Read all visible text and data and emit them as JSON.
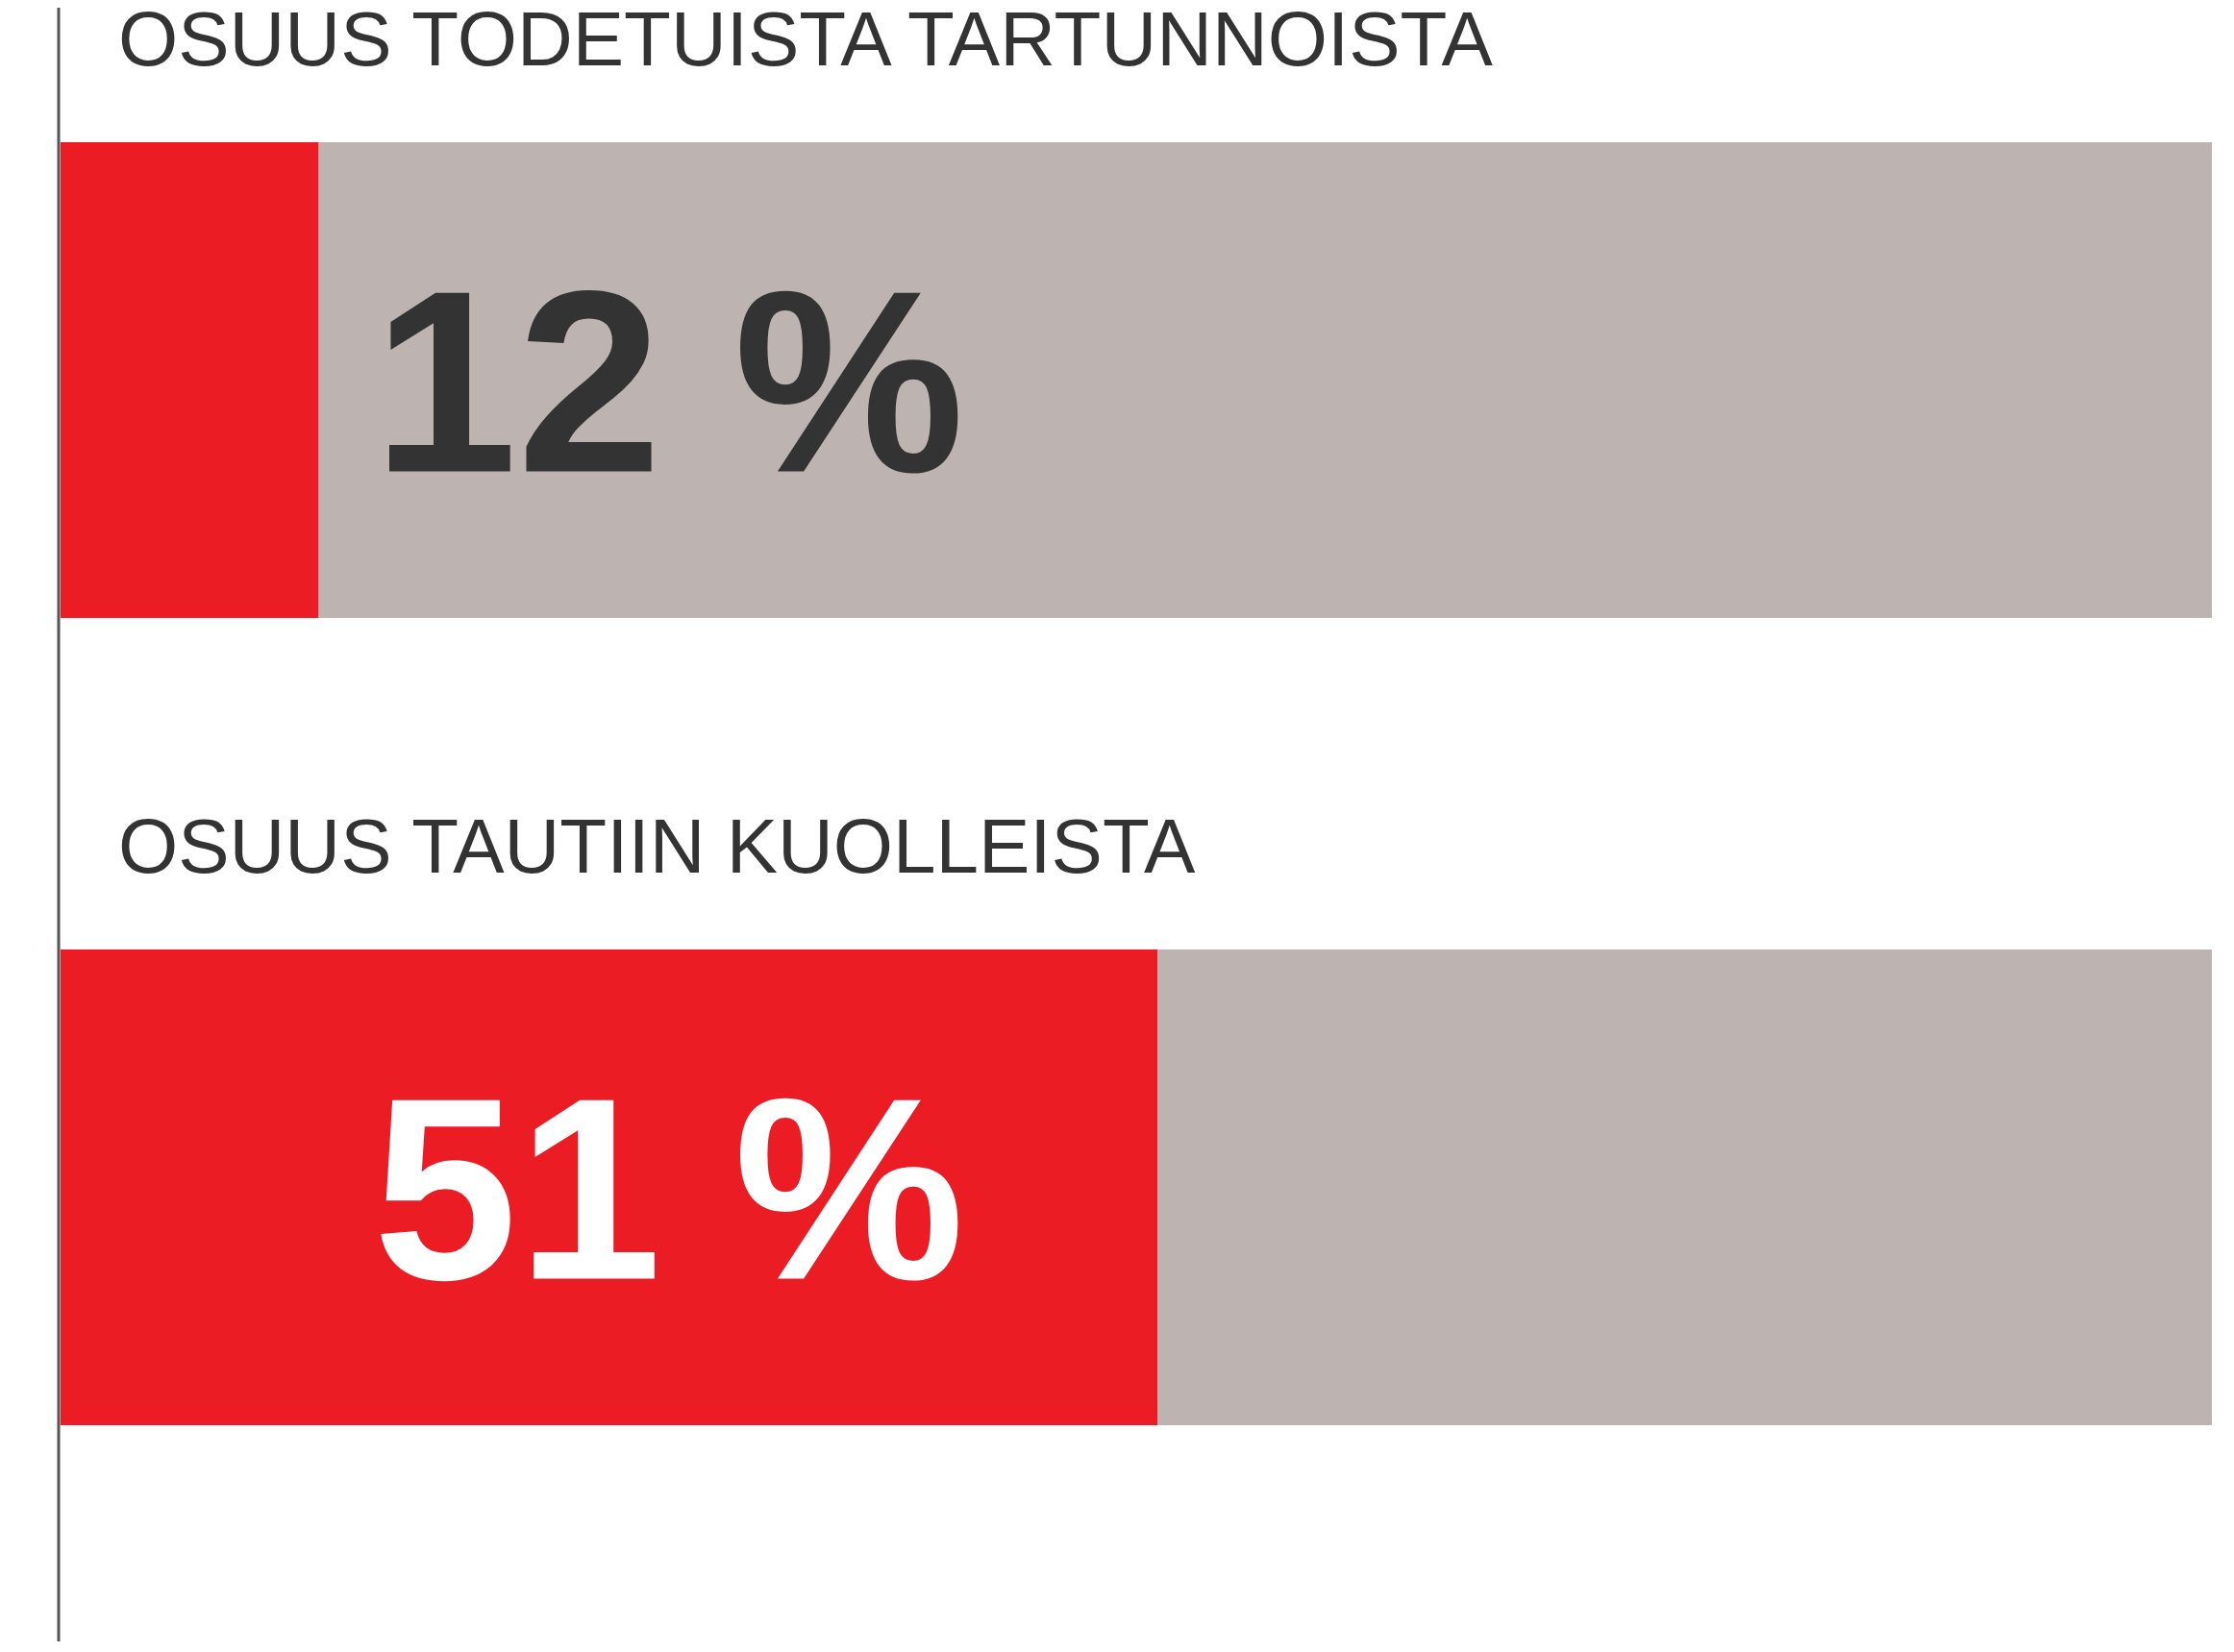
{
  "chart_data": {
    "type": "bar",
    "orientation": "horizontal",
    "stacked": true,
    "categories": [
      "OSUUS TODETUISTA TARTUNNOISTA",
      "OSUUS TAUTIIN KUOLLEISTA"
    ],
    "series": [
      {
        "color": "#ec1c24",
        "values": [
          12,
          51
        ],
        "value_labels": [
          "12 %",
          "51 %"
        ]
      },
      {
        "color": "#bdb4b1",
        "values": [
          88,
          49
        ]
      }
    ],
    "xlim": [
      0,
      100
    ],
    "tick_labels": false
  }
}
